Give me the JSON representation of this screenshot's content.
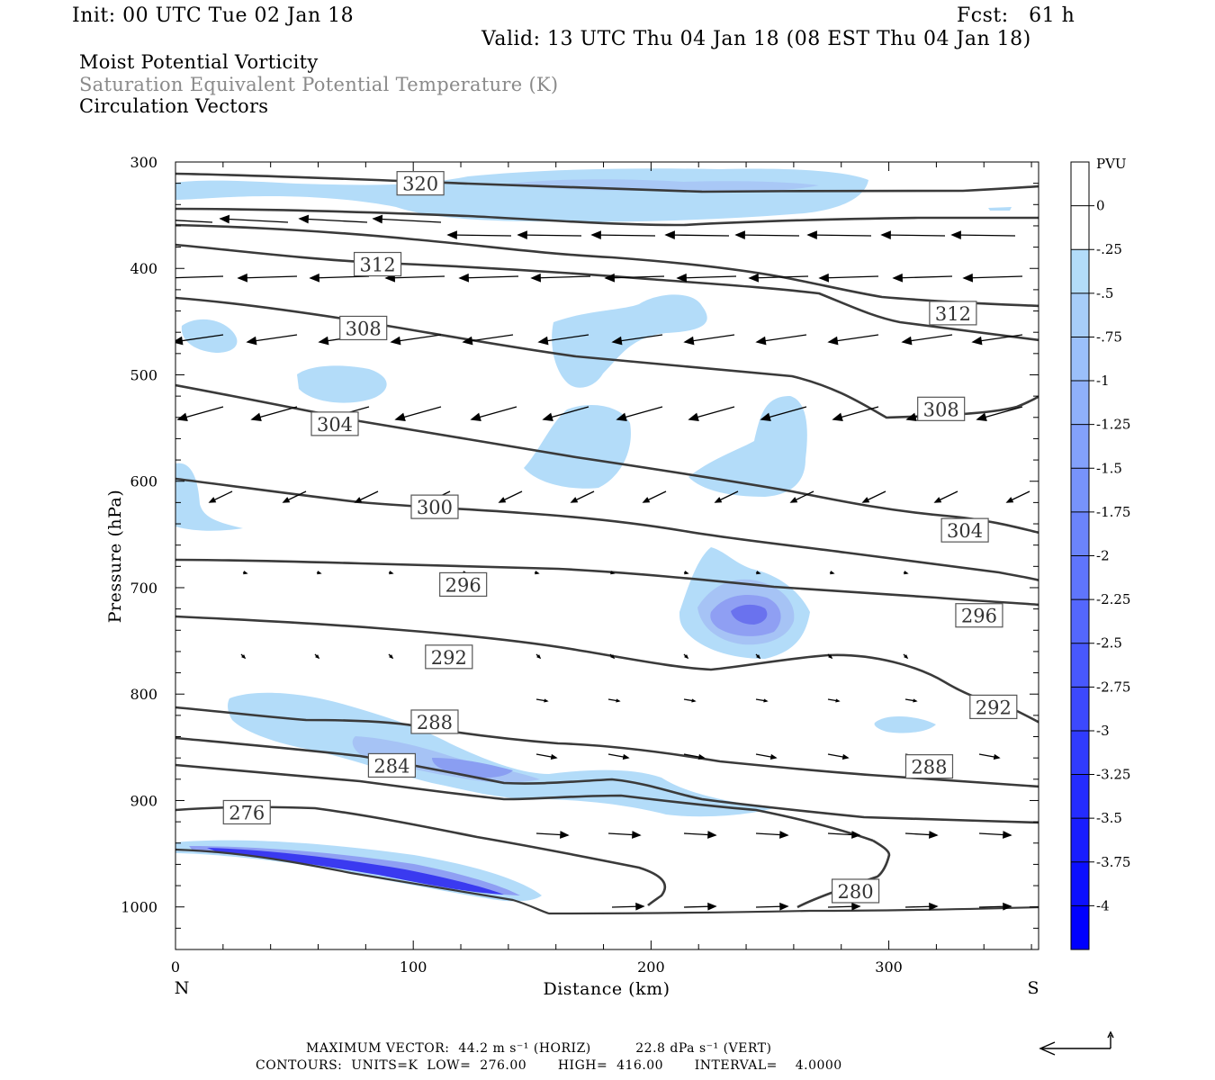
{
  "header": {
    "init": "Init: 00 UTC Tue 02 Jan 18",
    "fcst": "Fcst:   61 h",
    "valid": "Valid: 13 UTC Thu 04 Jan 18 (08 EST Thu 04 Jan 18)"
  },
  "legend_lines": {
    "line1": "Moist Potential Vorticity",
    "line2": "Saturation Equivalent Potential Temperature (K)",
    "line3": "Circulation Vectors"
  },
  "colors": {
    "contour": "#3a3a3a",
    "pv_light": "#b3dcf9",
    "pv_dark": "#3030f0",
    "vector": "#000000"
  },
  "chart_data": {
    "type": "contour",
    "xlabel": "Distance (km)",
    "ylabel": "Pressure (hPa)",
    "xlim": [
      0,
      363
    ],
    "ylim": [
      1040,
      300
    ],
    "x_ticks": [
      0,
      100,
      200,
      300
    ],
    "y_ticks": [
      300,
      400,
      500,
      600,
      700,
      800,
      900,
      1000
    ],
    "x_end_labels": {
      "left": "N",
      "right": "S"
    },
    "colorbar": {
      "title": "PVU",
      "tick_labels": [
        "0",
        "-.25",
        "-.5",
        "-.75",
        "-1",
        "-1.25",
        "-1.5",
        "-1.75",
        "-2",
        "-2.25",
        "-2.5",
        "-2.75",
        "-3",
        "-3.25",
        "-3.5",
        "-3.75",
        "-4"
      ]
    },
    "contour_labels": [
      {
        "text": "320",
        "x": 103,
        "p": 320
      },
      {
        "text": "312",
        "x": 85,
        "p": 396
      },
      {
        "text": "312",
        "x": 327,
        "p": 442
      },
      {
        "text": "308",
        "x": 79,
        "p": 456
      },
      {
        "text": "308",
        "x": 322,
        "p": 532
      },
      {
        "text": "304",
        "x": 67,
        "p": 546
      },
      {
        "text": "304",
        "x": 332,
        "p": 646
      },
      {
        "text": "300",
        "x": 109,
        "p": 624
      },
      {
        "text": "296",
        "x": 121,
        "p": 697
      },
      {
        "text": "296",
        "x": 338,
        "p": 726
      },
      {
        "text": "292",
        "x": 115,
        "p": 765
      },
      {
        "text": "292",
        "x": 344,
        "p": 812
      },
      {
        "text": "288",
        "x": 109,
        "p": 826
      },
      {
        "text": "288",
        "x": 317,
        "p": 868
      },
      {
        "text": "284",
        "x": 91,
        "p": 867
      },
      {
        "text": "276",
        "x": 30,
        "p": 911
      },
      {
        "text": "280",
        "x": 286,
        "p": 985
      }
    ],
    "contour_values_K": [
      276,
      280,
      284,
      288,
      292,
      296,
      300,
      304,
      308,
      312,
      316,
      320
    ]
  },
  "footer": {
    "max_vector": "MAXIMUM VECTOR:  44.2 m s⁻¹ (HORIZ)          22.8 dPa s⁻¹ (VERT)",
    "contours": "CONTOURS:  UNITS=K  LOW=  276.00       HIGH=  416.00       INTERVAL=    4.0000"
  }
}
